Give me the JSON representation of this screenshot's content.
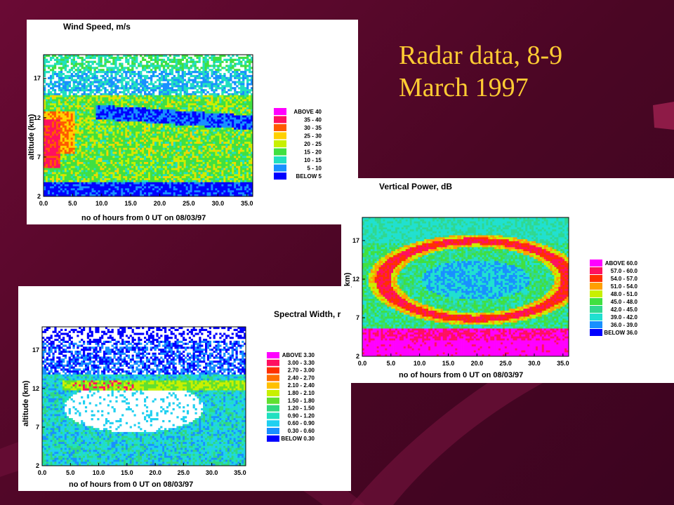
{
  "slide": {
    "title_line1": "Radar data, 8-9",
    "title_line2": "March 1997"
  },
  "theme": {
    "background": "#5a0830",
    "title_color": "#ffcc33",
    "swoosh_color": "#7a1440"
  },
  "chart_data": [
    {
      "id": "wind",
      "type": "heatmap",
      "title": "Wind Speed, m/s",
      "xlabel": "no of hours from 0 UT on 08/03/97",
      "ylabel": "altitude (km)",
      "xticks": [
        "0.0",
        "5.0",
        "10.0",
        "15.0",
        "20.0",
        "25.0",
        "30.0",
        "35.0"
      ],
      "yticks": [
        "2",
        "7",
        "12",
        "17"
      ],
      "xlim": [
        0,
        36
      ],
      "ylim": [
        2,
        20
      ],
      "legend": [
        {
          "label": "ABOVE  40",
          "color": "#ff00ff"
        },
        {
          "label": "35 - 40",
          "color": "#ff1060"
        },
        {
          "label": "30 - 35",
          "color": "#ff5a00"
        },
        {
          "label": "25 - 30",
          "color": "#ffd000"
        },
        {
          "label": "20 - 25",
          "color": "#c8f000"
        },
        {
          "label": "15 - 20",
          "color": "#40e040"
        },
        {
          "label": "10 - 15",
          "color": "#20e0c0"
        },
        {
          "label": "5 - 10",
          "color": "#1890ff"
        },
        {
          "label": "BELOW   5",
          "color": "#0000ff"
        }
      ]
    },
    {
      "id": "vpower",
      "type": "heatmap",
      "title": "Vertical Power, dB",
      "xlabel": "no of hours from 0 UT on 08/03/97",
      "ylabel": "altitude (km)",
      "xticks": [
        "0.0",
        "5.0",
        "10.0",
        "15.0",
        "20.0",
        "25.0",
        "30.0",
        "35.0"
      ],
      "yticks": [
        "2",
        "7",
        "12",
        "17"
      ],
      "xlim": [
        0,
        36
      ],
      "ylim": [
        2,
        20
      ],
      "legend": [
        {
          "label": "ABOVE  60.0",
          "color": "#ff00ff"
        },
        {
          "label": "57.0 - 60.0",
          "color": "#ff1060"
        },
        {
          "label": "54.0 - 57.0",
          "color": "#ff3000"
        },
        {
          "label": "51.0 - 54.0",
          "color": "#ffa000"
        },
        {
          "label": "48.0 - 51.0",
          "color": "#c8f000"
        },
        {
          "label": "45.0 - 48.0",
          "color": "#40e040"
        },
        {
          "label": "42.0 - 45.0",
          "color": "#30d890"
        },
        {
          "label": "39.0 - 42.0",
          "color": "#20e0d0"
        },
        {
          "label": "36.0 - 39.0",
          "color": "#1890ff"
        },
        {
          "label": "BELOW  36.0",
          "color": "#0000ff"
        }
      ]
    },
    {
      "id": "spectral",
      "type": "heatmap",
      "title": "Spectral Width, r",
      "xlabel": "no of hours from 0 UT on 08/03/97",
      "ylabel": "altitude (km)",
      "xticks": [
        "0.0",
        "5.0",
        "10.0",
        "15.0",
        "20.0",
        "25.0",
        "30.0",
        "35.0"
      ],
      "yticks": [
        "2",
        "7",
        "12",
        "17"
      ],
      "xlim": [
        0,
        36
      ],
      "ylim": [
        2,
        20
      ],
      "legend": [
        {
          "label": "ABOVE  3.30",
          "color": "#ff00ff"
        },
        {
          "label": "3.00 - 3.30",
          "color": "#ff1060"
        },
        {
          "label": "2.70 - 3.00",
          "color": "#ff3000"
        },
        {
          "label": "2.40 - 2.70",
          "color": "#ff7000"
        },
        {
          "label": "2.10 - 2.40",
          "color": "#ffc000"
        },
        {
          "label": "1.80 - 2.10",
          "color": "#c8f000"
        },
        {
          "label": "1.50 - 1.80",
          "color": "#60e030"
        },
        {
          "label": "1.20 - 1.50",
          "color": "#30d880"
        },
        {
          "label": "0.90 - 1.20",
          "color": "#20e0c0"
        },
        {
          "label": "0.60 - 0.90",
          "color": "#20d0f0"
        },
        {
          "label": "0.30 - 0.60",
          "color": "#1890ff"
        },
        {
          "label": "BELOW  0.30",
          "color": "#0000ff"
        }
      ]
    }
  ]
}
